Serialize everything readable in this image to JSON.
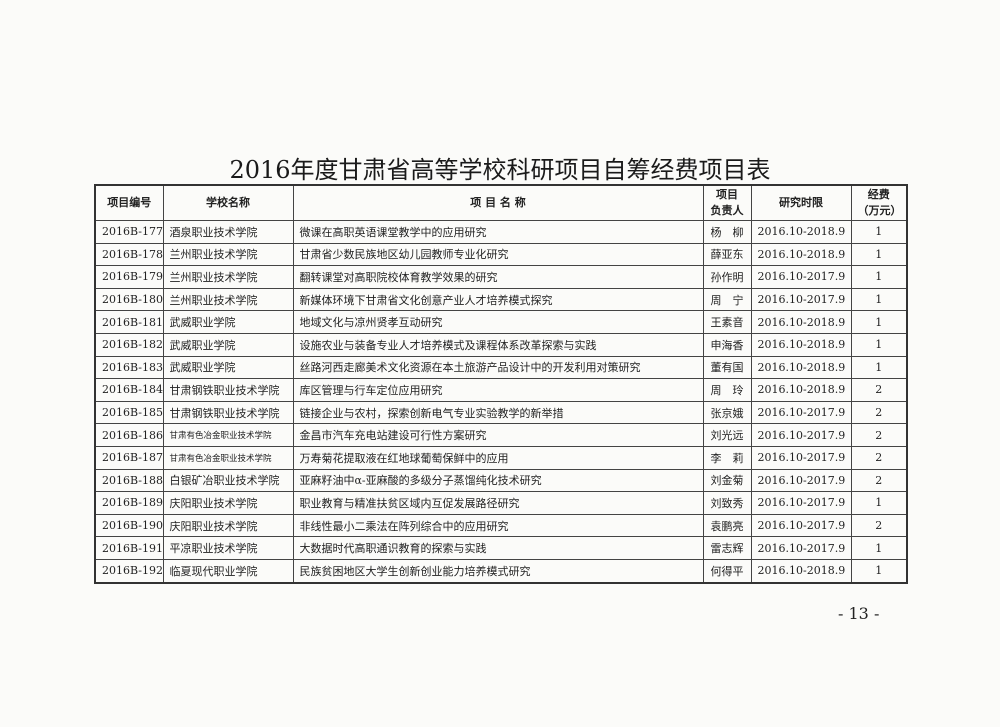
{
  "title": "2016年度甘肃省高等学校科研项目自筹经费项目表",
  "table": {
    "headers": [
      "项目编号",
      "学校名称",
      "项 目 名 称",
      "项目\n负责人",
      "研究时限",
      "经费\n（万元）"
    ],
    "rows": [
      [
        "2016B-177",
        "酒泉职业技术学院",
        "微课在高职英语课堂教学中的应用研究",
        "杨　柳",
        "2016.10-2018.9",
        "1"
      ],
      [
        "2016B-178",
        "兰州职业技术学院",
        "甘肃省少数民族地区幼儿园教师专业化研究",
        "薛亚东",
        "2016.10-2018.9",
        "1"
      ],
      [
        "2016B-179",
        "兰州职业技术学院",
        "翻转课堂对高职院校体育教学效果的研究",
        "孙作明",
        "2016.10-2017.9",
        "1"
      ],
      [
        "2016B-180",
        "兰州职业技术学院",
        "新媒体环境下甘肃省文化创意产业人才培养模式探究",
        "周　宁",
        "2016.10-2017.9",
        "1"
      ],
      [
        "2016B-181",
        "武威职业学院",
        "地域文化与凉州贤孝互动研究",
        "王素音",
        "2016.10-2018.9",
        "1"
      ],
      [
        "2016B-182",
        "武威职业学院",
        "设施农业与装备专业人才培养模式及课程体系改革探索与实践",
        "申海香",
        "2016.10-2018.9",
        "1"
      ],
      [
        "2016B-183",
        "武威职业学院",
        "丝路河西走廊美术文化资源在本土旅游产品设计中的开发利用对策研究",
        "董有国",
        "2016.10-2018.9",
        "1"
      ],
      [
        "2016B-184",
        "甘肃钢铁职业技术学院",
        "库区管理与行车定位应用研究",
        "周　玲",
        "2016.10-2018.9",
        "2"
      ],
      [
        "2016B-185",
        "甘肃钢铁职业技术学院",
        "链接企业与农村，探索创新电气专业实验教学的新举措",
        "张京娥",
        "2016.10-2017.9",
        "2"
      ],
      [
        "2016B-186",
        "甘肃有色冶金职业技术学院",
        "金昌市汽车充电站建设可行性方案研究",
        "刘光远",
        "2016.10-2017.9",
        "2"
      ],
      [
        "2016B-187",
        "甘肃有色冶金职业技术学院",
        "万寿菊花提取液在红地球葡萄保鲜中的应用",
        "李　莉",
        "2016.10-2017.9",
        "2"
      ],
      [
        "2016B-188",
        "白银矿冶职业技术学院",
        "亚麻籽油中α-亚麻酸的多级分子蒸馏纯化技术研究",
        "刘金菊",
        "2016.10-2017.9",
        "2"
      ],
      [
        "2016B-189",
        "庆阳职业技术学院",
        "职业教育与精准扶贫区域内互促发展路径研究",
        "刘致秀",
        "2016.10-2017.9",
        "1"
      ],
      [
        "2016B-190",
        "庆阳职业技术学院",
        "非线性最小二乘法在阵列综合中的应用研究",
        "袁鹏亮",
        "2016.10-2017.9",
        "2"
      ],
      [
        "2016B-191",
        "平凉职业技术学院",
        "大数据时代高职通识教育的探索与实践",
        "雷志辉",
        "2016.10-2017.9",
        "1"
      ],
      [
        "2016B-192",
        "临夏现代职业学院",
        "民族贫困地区大学生创新创业能力培养模式研究",
        "何得平",
        "2016.10-2018.9",
        "1"
      ]
    ]
  },
  "page_number": "- 13 -"
}
